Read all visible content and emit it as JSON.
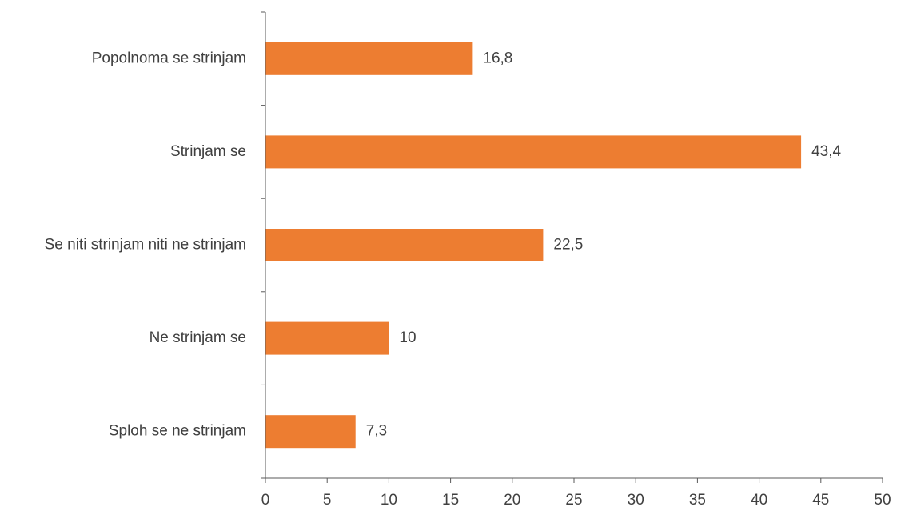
{
  "chart_data": {
    "type": "bar",
    "orientation": "horizontal",
    "categories": [
      "Popolnoma se strinjam",
      "Strinjam se",
      "Se niti strinjam niti ne strinjam",
      "Ne strinjam se",
      "Sploh se ne strinjam"
    ],
    "values": [
      16.8,
      43.4,
      22.5,
      10,
      7.3
    ],
    "value_labels": [
      "16,8",
      "43,4",
      "22,5",
      "10",
      "7,3"
    ],
    "xlim": [
      0,
      50
    ],
    "xticks": [
      0,
      5,
      10,
      15,
      20,
      25,
      30,
      35,
      40,
      45,
      50
    ],
    "xtick_labels": [
      "0",
      "5",
      "10",
      "15",
      "20",
      "25",
      "30",
      "35",
      "40",
      "45",
      "50"
    ],
    "title": "",
    "xlabel": "",
    "ylabel": "",
    "grid": false,
    "legend": "none",
    "bar_color": "#ED7D31",
    "axis_color": "#595959",
    "text_color": "#404040"
  }
}
